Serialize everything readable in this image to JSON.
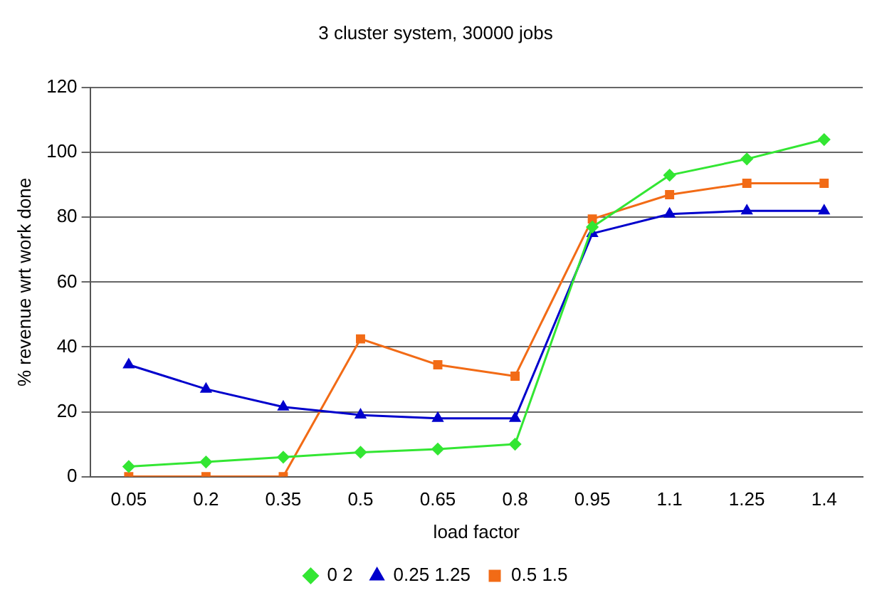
{
  "chart_data": {
    "type": "line",
    "title": "3 cluster system, 30000 jobs",
    "xlabel": "load factor",
    "ylabel": "% revenue wrt work done",
    "categories": [
      "0.05",
      "0.2",
      "0.35",
      "0.5",
      "0.65",
      "0.8",
      "0.95",
      "1.1",
      "1.25",
      "1.4"
    ],
    "series": [
      {
        "name": "0 2",
        "color": "#33e633",
        "marker": "diamond",
        "values": [
          3.1,
          4.5,
          6,
          7.5,
          8.5,
          10,
          77,
          93,
          98,
          104
        ]
      },
      {
        "name": "0.25 1.25",
        "color": "#0000cc",
        "marker": "triangle",
        "values": [
          34.5,
          27,
          21.5,
          19,
          18,
          18,
          75,
          81,
          82,
          82
        ]
      },
      {
        "name": "0.5 1.5",
        "color": "#f26b16",
        "marker": "square",
        "values": [
          0,
          0,
          0,
          42.5,
          34.5,
          31,
          79.5,
          87,
          90.5,
          90.5
        ]
      }
    ],
    "ylim": [
      0,
      120
    ],
    "yticks": [
      0,
      20,
      40,
      60,
      80,
      100,
      120
    ],
    "grid": "y",
    "legend": "bottom"
  }
}
